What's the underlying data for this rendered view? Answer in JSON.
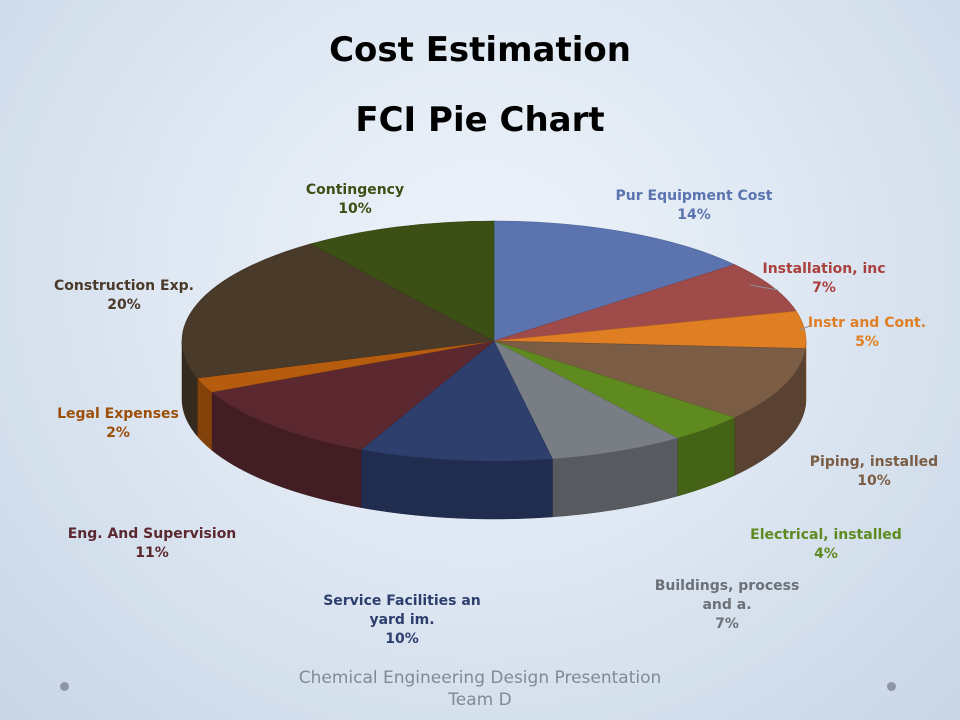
{
  "title": "Cost Estimation",
  "subtitle": "FCI Pie Chart",
  "footer": {
    "line1": "Chemical Engineering Design Presentation",
    "line2": "Team D"
  },
  "chart_data": {
    "type": "pie",
    "style": "3d-exploded",
    "slices": [
      {
        "label": "Pur Equipment Cost",
        "value": 14,
        "value_label": "14%",
        "color": "#5b74b0",
        "label_color": "#5b74b0"
      },
      {
        "label": "Installation, inc",
        "value": 7,
        "value_label": "7%",
        "color": "#9e4b4a",
        "label_color": "#a9403c"
      },
      {
        "label": "Instr and Cont.",
        "value": 5,
        "value_label": "5%",
        "color": "#e07e24",
        "label_color": "#e07e24"
      },
      {
        "label": "Piping, installed",
        "value": 10,
        "value_label": "10%",
        "color": "#7b5c44",
        "label_color": "#7b5c44"
      },
      {
        "label": "Electrical, installed",
        "value": 4,
        "value_label": "4%",
        "color": "#5f8a1f",
        "label_color": "#5f8a1f"
      },
      {
        "label": "Buildings, process and a.",
        "value": 7,
        "value_label": "7%",
        "color": "#797e84",
        "label_color": "#6c7178"
      },
      {
        "label": "Service Facilities an yard im.",
        "value": 10,
        "value_label": "10%",
        "color": "#2e3f6e",
        "label_color": "#2e3f6e"
      },
      {
        "label": "Eng. And Supervision",
        "value": 11,
        "value_label": "11%",
        "color": "#5c2830",
        "label_color": "#5c2830"
      },
      {
        "label": "Legal Expenses",
        "value": 2,
        "value_label": "2%",
        "color": "#b65c0e",
        "label_color": "#9d4f08"
      },
      {
        "label": "Construction Exp.",
        "value": 20,
        "value_label": "20%",
        "color": "#4a3a29",
        "label_color": "#4a3a29"
      },
      {
        "label": "Contingency",
        "value": 10,
        "value_label": "10%",
        "color": "#3c4f14",
        "label_color": "#3c4f14"
      }
    ]
  }
}
